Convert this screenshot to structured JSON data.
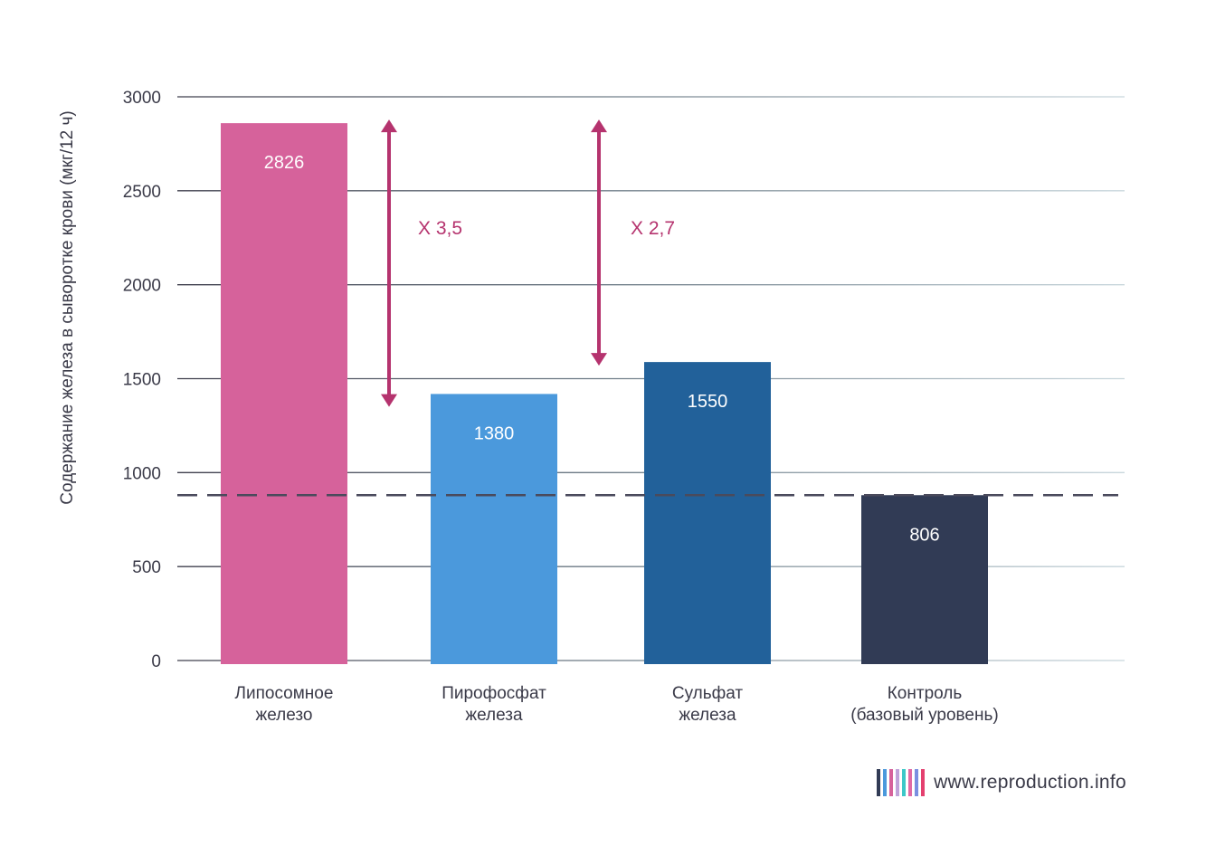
{
  "chart_data": {
    "type": "bar",
    "ylabel": "Содержание железа в сыворотке крови (мкг/12 ч)",
    "ylim": [
      0,
      3000
    ],
    "yticks": [
      0,
      500,
      1000,
      1500,
      2000,
      2500,
      3000
    ],
    "grid": true,
    "categories": [
      [
        "Липосомное",
        "железо"
      ],
      [
        "Пирофосфат",
        "железа"
      ],
      [
        "Сульфат",
        "железа"
      ],
      [
        "Контроль",
        "(базовый уровень)"
      ]
    ],
    "values": [
      2826,
      1380,
      1550,
      806
    ],
    "value_labels": [
      "2826",
      "1380",
      "1550",
      "806"
    ],
    "colors": [
      "#d6629b",
      "#4b99dc",
      "#22619a",
      "#313b55"
    ],
    "reference_line": {
      "value": 880,
      "style": "dashed",
      "color": "#4a4a5c"
    },
    "annotations": [
      {
        "label": "X 3,5",
        "from": 2860,
        "to": 1350,
        "color": "#b5336e"
      },
      {
        "label": "X 2,7",
        "from": 2860,
        "to": 1550,
        "color": "#b5336e"
      }
    ]
  },
  "footer": {
    "text": "www.reproduction.info",
    "logo_colors": [
      "#313b55",
      "#4b99dc",
      "#d6629b",
      "#bfa3d9",
      "#3cc8c8",
      "#e06aa5",
      "#7a8fe0",
      "#e4406f"
    ]
  }
}
